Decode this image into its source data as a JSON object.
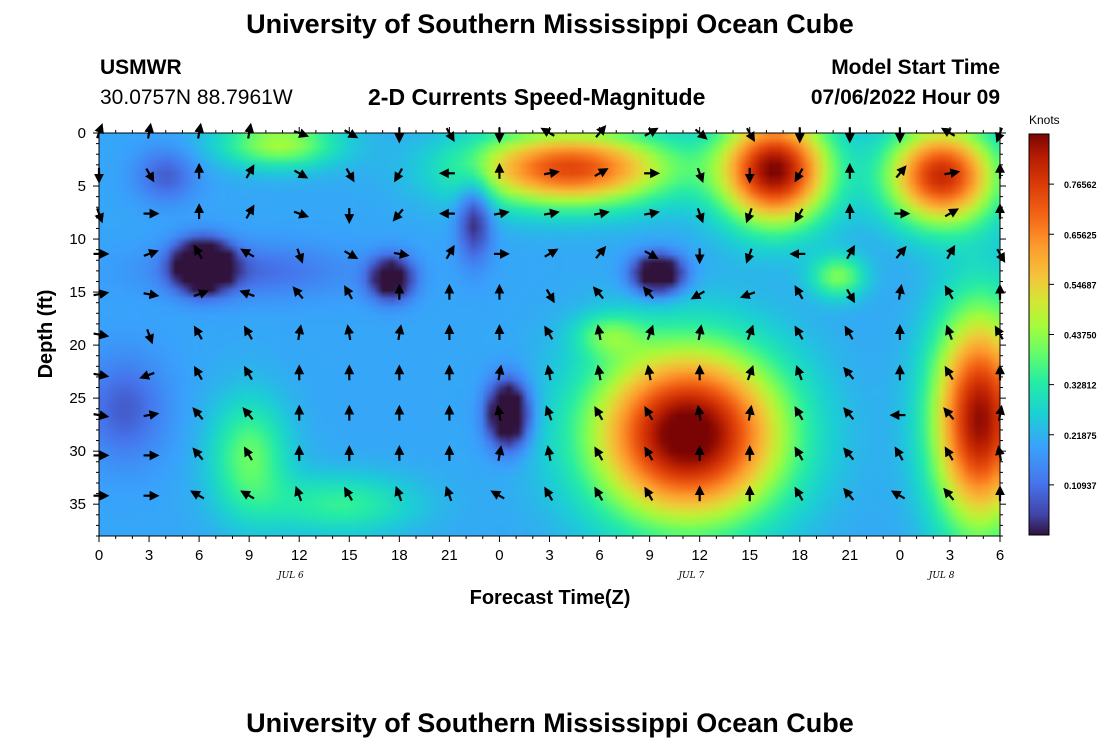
{
  "header": {
    "title": "University of Southern Mississippi Ocean Cube",
    "station_id": "USMWR",
    "station_coords": "30.0757N  88.7961W",
    "product": "2-D Currents Speed-Magnitude",
    "model_start_label": "Model Start Time",
    "model_start_value": "07/06/2022 Hour 09"
  },
  "footer": {
    "title": "University of Southern Mississippi Ocean Cube"
  },
  "chart_data": {
    "type": "heatmap",
    "title": "2-D Currents Speed-Magnitude",
    "xlabel": "Forecast Time(Z)",
    "ylabel": "Depth (ft)",
    "x_hours": [
      0,
      3,
      6,
      9,
      12,
      15,
      18,
      21,
      24,
      27,
      30,
      33,
      36,
      39,
      42,
      45,
      48,
      51,
      54
    ],
    "xtick_labels": [
      "0",
      "3",
      "6",
      "9",
      "12",
      "15",
      "18",
      "21",
      "0",
      "3",
      "6",
      "9",
      "12",
      "15",
      "18",
      "21",
      "0",
      "3",
      "6"
    ],
    "date_labels": [
      {
        "label": "JUL 6",
        "hour": 11.5
      },
      {
        "label": "JUL 7",
        "hour": 35.5
      },
      {
        "label": "JUL 8",
        "hour": 50.5
      }
    ],
    "ylim": [
      0,
      38
    ],
    "yticks": [
      0,
      5,
      10,
      15,
      20,
      25,
      30,
      35
    ],
    "ytick_labels": [
      "0",
      "5",
      "10",
      "15",
      "20",
      "25",
      "30",
      "35"
    ],
    "colorbar": {
      "label": "Knots",
      "min": 0,
      "max": 0.875,
      "ticks": [
        0.10937,
        0.21875,
        0.32812,
        0.4375,
        0.54687,
        0.65625,
        0.76562
      ],
      "tick_labels": [
        "0.10937",
        "0.21875",
        "0.32812",
        "0.43750",
        "0.54687",
        "0.65625",
        "0.76562"
      ]
    },
    "arrow_hours": [
      0,
      3,
      6,
      9,
      12,
      15,
      18,
      21,
      24,
      27,
      30,
      33,
      36,
      39,
      42,
      45,
      48,
      51,
      54
    ],
    "arrow_depths": [
      0,
      3.8,
      7.6,
      11.4,
      15.2,
      19,
      22.8,
      26.6,
      30.4,
      34.2
    ],
    "directions_deg": [
      [
        20,
        10,
        10,
        10,
        110,
        120,
        180,
        150,
        180,
        300,
        40,
        60,
        130,
        150,
        180,
        180,
        180,
        300,
        200
      ],
      [
        180,
        150,
        0,
        30,
        120,
        150,
        210,
        270,
        0,
        80,
        60,
        90,
        160,
        180,
        210,
        0,
        40,
        80,
        0
      ],
      [
        160,
        90,
        0,
        30,
        110,
        180,
        220,
        270,
        80,
        80,
        80,
        80,
        160,
        200,
        210,
        0,
        90,
        60,
        0
      ],
      [
        90,
        70,
        330,
        300,
        160,
        120,
        100,
        30,
        90,
        60,
        40,
        120,
        180,
        200,
        270,
        30,
        40,
        30,
        150
      ],
      [
        80,
        100,
        70,
        290,
        320,
        330,
        0,
        0,
        0,
        150,
        320,
        320,
        240,
        250,
        330,
        150,
        10,
        330,
        0
      ],
      [
        100,
        160,
        330,
        330,
        10,
        350,
        10,
        0,
        0,
        330,
        350,
        20,
        10,
        20,
        330,
        330,
        0,
        340,
        330
      ],
      [
        100,
        250,
        330,
        330,
        0,
        0,
        0,
        0,
        10,
        350,
        350,
        350,
        0,
        20,
        340,
        320,
        0,
        330,
        0
      ],
      [
        100,
        80,
        320,
        320,
        0,
        0,
        0,
        0,
        350,
        340,
        330,
        330,
        350,
        10,
        330,
        320,
        270,
        320,
        10
      ],
      [
        90,
        90,
        320,
        330,
        0,
        0,
        0,
        0,
        10,
        350,
        330,
        330,
        0,
        0,
        330,
        320,
        330,
        330,
        350
      ],
      [
        90,
        90,
        300,
        300,
        340,
        330,
        340,
        340,
        300,
        330,
        330,
        330,
        0,
        0,
        330,
        320,
        300,
        320,
        0
      ]
    ]
  }
}
